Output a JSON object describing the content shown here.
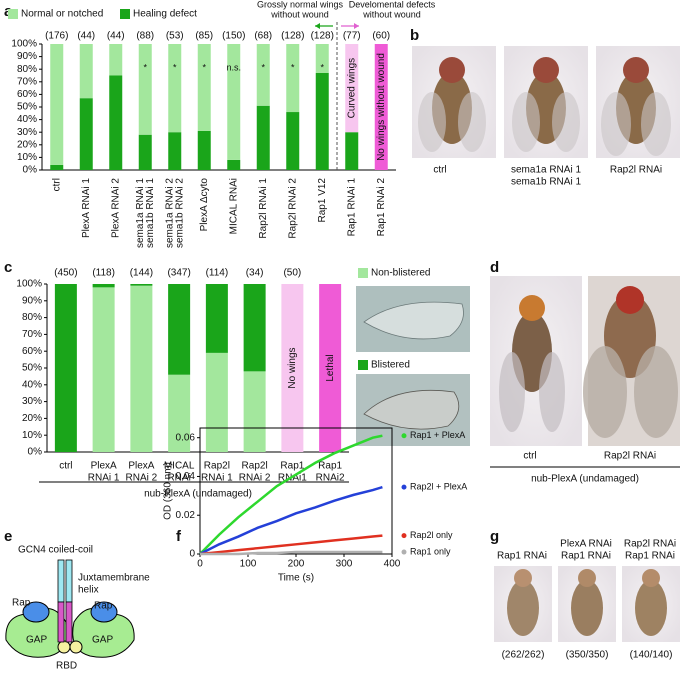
{
  "chart_data": [
    {
      "type": "bar",
      "stacked": true,
      "categories": [
        [
          "ctrl"
        ],
        [
          "PlexA RNAi 1"
        ],
        [
          "PlexA RNAi 2"
        ],
        [
          "sema1a RNAi 1",
          "sema1b RNAi 1"
        ],
        [
          "sema1a RNAi 2",
          "sema1b RNAi 2"
        ],
        [
          "PlexA Δcyto"
        ],
        [
          "MICAL RNAi"
        ],
        [
          "Rap2l RNAi 1"
        ],
        [
          "Rap2l RNAi 2"
        ],
        [
          "Rap1 V12"
        ],
        [
          "Rap1 RNAi 1"
        ],
        [
          "Rap1 RNAi 2"
        ]
      ],
      "series": [
        {
          "name": "Healing defect",
          "color": "#1aa51a",
          "legend": true,
          "values": [
            4,
            57,
            75,
            28,
            30,
            31,
            8,
            51,
            46,
            77,
            30,
            null
          ]
        },
        {
          "name": "Normal or notched",
          "color": "#a3e79d",
          "legend": true,
          "values": [
            96,
            43,
            25,
            72,
            70,
            69,
            92,
            49,
            54,
            23,
            null,
            null
          ]
        },
        {
          "name": "Curved wings",
          "color": "#f7c6ef",
          "legend": false,
          "values": [
            null,
            null,
            null,
            null,
            null,
            null,
            null,
            null,
            null,
            null,
            70,
            null
          ]
        },
        {
          "name": "No wings without wound",
          "color": "#ef5bd6",
          "legend": false,
          "values": [
            null,
            null,
            null,
            null,
            null,
            null,
            null,
            null,
            null,
            null,
            null,
            100
          ]
        }
      ],
      "sample_sizes": [
        "(176)",
        "(44)",
        "(44)",
        "(88)",
        "(53)",
        "(85)",
        "(150)",
        "(68)",
        "(128)",
        "(128)",
        "(77)",
        "(60)"
      ],
      "significance": [
        null,
        null,
        null,
        "*",
        "*",
        "*",
        "n.s.",
        "*",
        "*",
        "*",
        null,
        null
      ],
      "annotations": [
        {
          "lines": [
            "Grossly normal wings",
            "without wound"
          ],
          "color": "#1aa51a",
          "arrow": "left"
        },
        {
          "lines": [
            "Develomental defects",
            "without wound"
          ],
          "color": "#e060d0",
          "arrow": "right"
        }
      ],
      "ylim": [
        0,
        100
      ],
      "yticks": [
        {
          "value": 0,
          "label": "0%"
        },
        {
          "value": 10,
          "label": "10%"
        },
        {
          "value": 20,
          "label": "20%"
        },
        {
          "value": 30,
          "label": "30%"
        },
        {
          "value": 40,
          "label": "40%"
        },
        {
          "value": 50,
          "label": "50%"
        },
        {
          "value": 60,
          "label": "60%"
        },
        {
          "value": 70,
          "label": "70%"
        },
        {
          "value": 80,
          "label": "80%"
        },
        {
          "value": 90,
          "label": "90%"
        },
        {
          "value": 100,
          "label": "100%"
        }
      ]
    },
    {
      "type": "bar",
      "stacked": true,
      "categories": [
        [
          "ctrl"
        ],
        [
          "PlexA",
          "RNAi 1"
        ],
        [
          "PlexA",
          "RNAi 2"
        ],
        [
          "MICAL",
          "RNAi"
        ],
        [
          "Rap2l",
          "RNAi 1"
        ],
        [
          "Rap2l",
          "RNAi 2"
        ],
        [
          "Rap1",
          "RNAi1"
        ],
        [
          "Rap1",
          "RNAi2"
        ]
      ],
      "series": [
        {
          "name": "Non-blistered",
          "color": "#a3e79d",
          "legend": true,
          "values": [
            0,
            98,
            99,
            46,
            59,
            48,
            null,
            null
          ]
        },
        {
          "name": "Blistered",
          "color": "#1aa51a",
          "legend": true,
          "values": [
            100,
            2,
            1,
            54,
            41,
            52,
            null,
            null
          ]
        },
        {
          "name": "No wings",
          "color": "#f7c6ef",
          "legend": false,
          "values": [
            null,
            null,
            null,
            null,
            null,
            null,
            100,
            null
          ]
        },
        {
          "name": "Lethal",
          "color": "#ef5bd6",
          "legend": false,
          "values": [
            null,
            null,
            null,
            null,
            null,
            null,
            null,
            100
          ]
        }
      ],
      "sample_sizes": [
        "(450)",
        "(118)",
        "(144)",
        "(347)",
        "(114)",
        "(34)",
        "(50)",
        null
      ],
      "group_label": "nub-PlexA (undamaged)",
      "ylim": [
        0,
        100
      ],
      "yticks": [
        {
          "value": 0,
          "label": "0%"
        },
        {
          "value": 10,
          "label": "10%"
        },
        {
          "value": 20,
          "label": "20%"
        },
        {
          "value": 30,
          "label": "30%"
        },
        {
          "value": 40,
          "label": "40%"
        },
        {
          "value": 50,
          "label": "50%"
        },
        {
          "value": 60,
          "label": "60%"
        },
        {
          "value": 70,
          "label": "70%"
        },
        {
          "value": 80,
          "label": "80%"
        },
        {
          "value": 90,
          "label": "90%"
        },
        {
          "value": 100,
          "label": "100%"
        }
      ]
    },
    {
      "type": "line",
      "x_label": "Time (s)",
      "y_label": "OD (360 nm)",
      "x": [
        0,
        40,
        80,
        120,
        160,
        200,
        240,
        280,
        320,
        360,
        380
      ],
      "series": [
        {
          "name": "Rap1 + PlexA",
          "color": "#2ed82e",
          "values": [
            0,
            0.01,
            0.019,
            0.027,
            0.035,
            0.041,
            0.047,
            0.052,
            0.056,
            0.06,
            0.061
          ]
        },
        {
          "name": "Rap2l + PlexA",
          "color": "#2440d8",
          "values": [
            0,
            0.005,
            0.009,
            0.0135,
            0.017,
            0.021,
            0.024,
            0.0275,
            0.0305,
            0.033,
            0.0345
          ]
        },
        {
          "name": "Rap2l only",
          "color": "#e03020",
          "values": [
            0,
            0.001,
            0.002,
            0.003,
            0.004,
            0.005,
            0.006,
            0.007,
            0.008,
            0.009,
            0.0095
          ]
        },
        {
          "name": "Rap1 only",
          "color": "#b0b0b0",
          "values": [
            0,
            0,
            0,
            0.0005,
            0.0005,
            0.001,
            0.001,
            0.001,
            0.001,
            0.001,
            0.001
          ]
        }
      ],
      "xlim": [
        0,
        400
      ],
      "xticks": [
        0,
        100,
        200,
        300,
        400
      ],
      "ylim": [
        0,
        0.065
      ],
      "yticks": [
        0,
        0.02,
        0.04,
        0.06
      ]
    }
  ],
  "panel_letters": [
    "a",
    "b",
    "c",
    "d",
    "e",
    "f",
    "g"
  ],
  "panel_b": {
    "labels": [
      [
        "ctrl"
      ],
      [
        "sema1a RNAi 1",
        "sema1b RNAi 1"
      ],
      [
        "Rap2l RNAi"
      ]
    ]
  },
  "panel_d": {
    "labels": [
      "ctrl",
      "Rap2l RNAi"
    ],
    "group_label": "nub-PlexA (undamaged)"
  },
  "panel_e": {
    "labels": [
      "GCN4 coiled-coil",
      "Juxtamembrane",
      "helix",
      "Rap",
      "Rap",
      "GAP",
      "GAP",
      "RBD"
    ]
  },
  "panel_g": {
    "labels": [
      [
        "Rap1 RNAi"
      ],
      [
        "PlexA RNAi",
        "Rap1 RNAi"
      ],
      [
        "Rap2l RNAi",
        "Rap1 RNAi"
      ]
    ],
    "counts": [
      "(262/262)",
      "(350/350)",
      "(140/140)"
    ]
  }
}
